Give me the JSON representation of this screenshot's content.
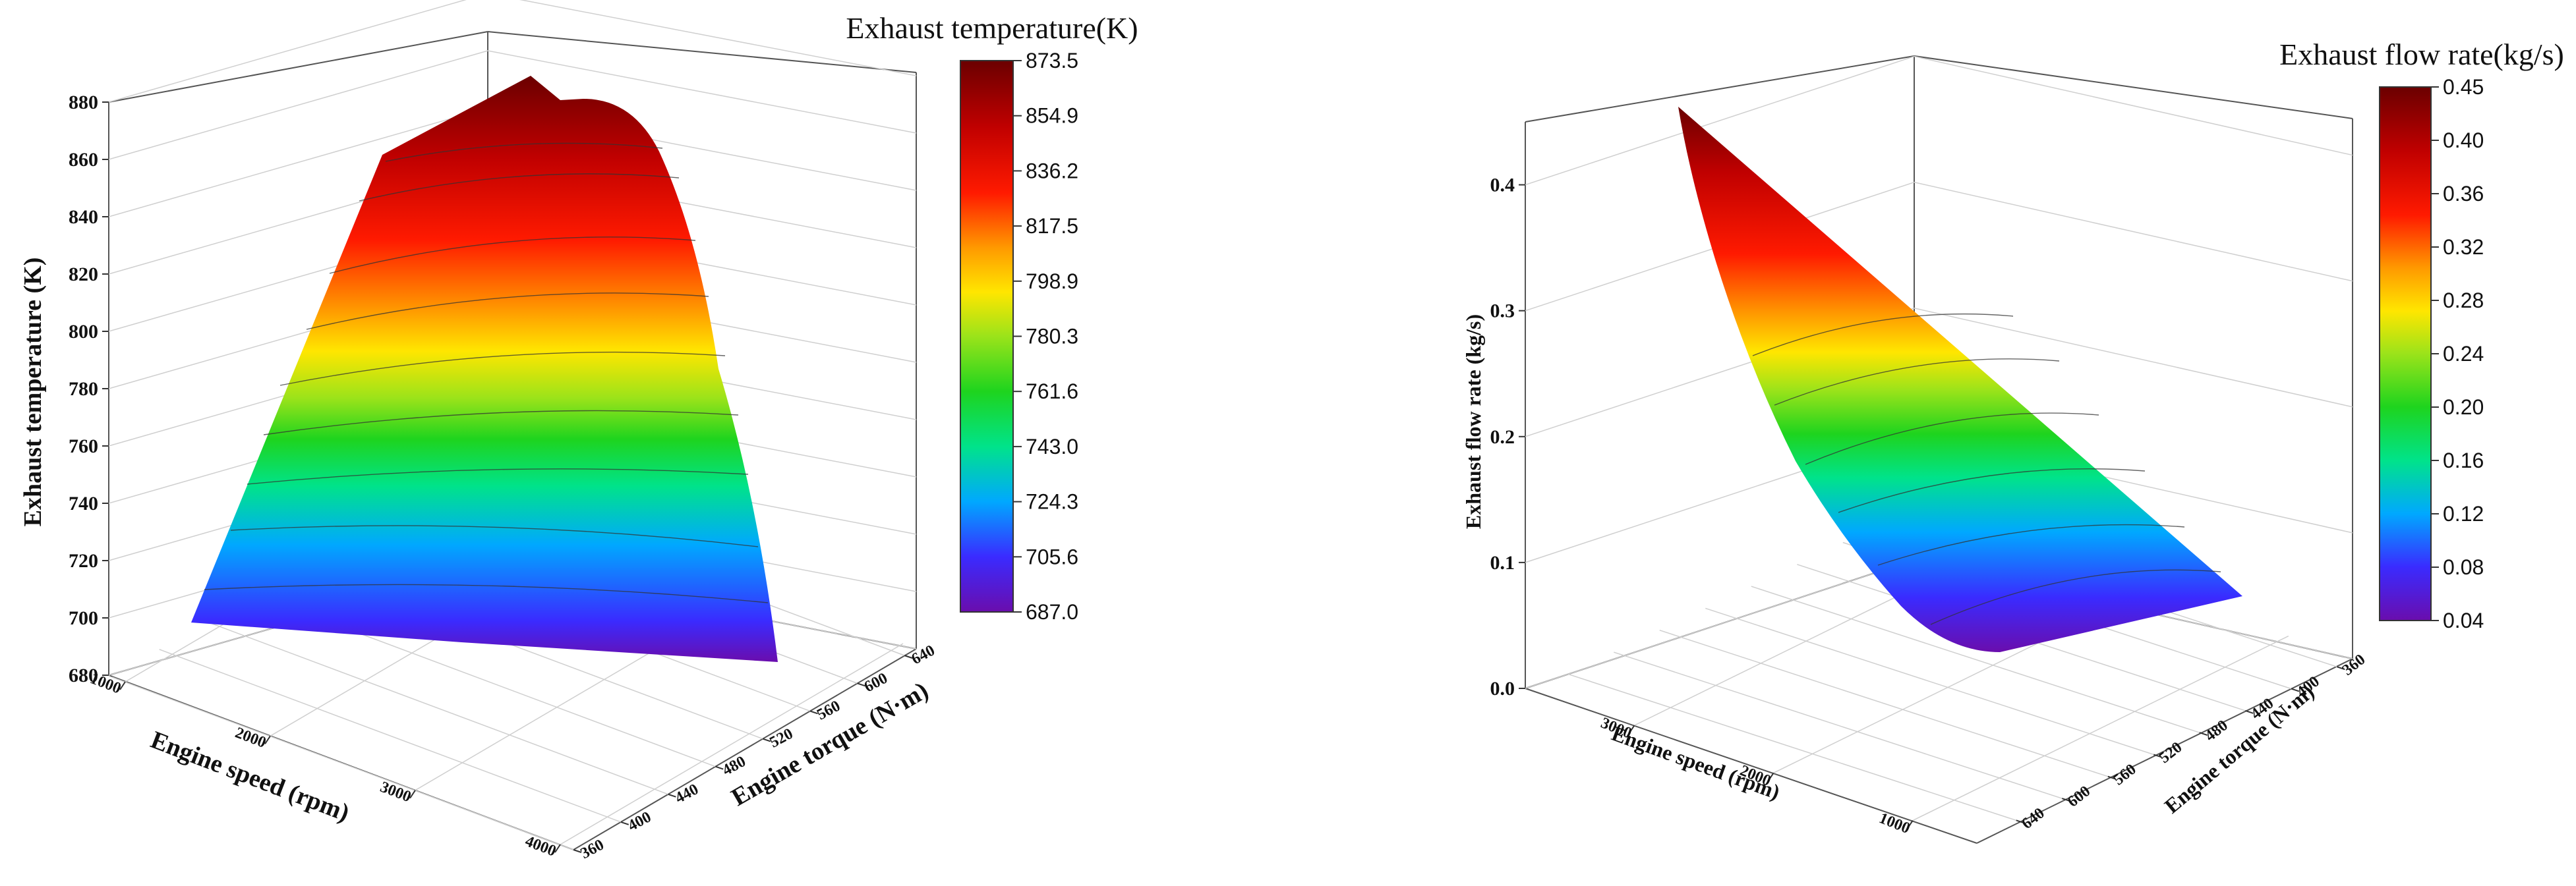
{
  "chart_data": [
    {
      "type": "surface",
      "zlabel": "Exhaust temperature (K)",
      "xlabel": "Engine speed (rpm)",
      "ylabel": "Engine torque (N·m)",
      "zlim": [
        680,
        880
      ],
      "z_ticks": [
        680,
        700,
        720,
        740,
        760,
        780,
        800,
        820,
        840,
        860,
        880
      ],
      "x_ticks": [
        1000,
        2000,
        3000,
        4000
      ],
      "y_ticks": [
        360,
        400,
        440,
        480,
        520,
        560,
        600,
        640
      ],
      "colorbar": {
        "title": "Exhaust temperature(K)",
        "ticks": [
          "873.5",
          "854.9",
          "836.2",
          "817.5",
          "798.9",
          "780.3",
          "761.6",
          "743.0",
          "724.3",
          "705.6",
          "687.0"
        ],
        "range": [
          687.0,
          873.5
        ]
      },
      "colormap": [
        "#6a0dad",
        "#3a2bff",
        "#00a8ff",
        "#00e38a",
        "#1ed41e",
        "#9be31a",
        "#ffe600",
        "#ff9a00",
        "#ff1a00",
        "#c00000",
        "#6b0000"
      ],
      "grid": true,
      "legend_position": "right"
    },
    {
      "type": "surface",
      "zlabel": "Exhaust flow rate (kg/s)",
      "xlabel": "Engine speed (rpm)",
      "ylabel": "Engine torque (N·m)",
      "zlim": [
        0.0,
        0.45
      ],
      "z_ticks": [
        "0.0",
        "0.1",
        "0.2",
        "0.3",
        "0.4"
      ],
      "x_ticks": [
        3000,
        2000,
        1000
      ],
      "y_ticks": [
        360,
        400,
        440,
        480,
        520,
        560,
        600,
        640
      ],
      "colorbar": {
        "title": "Exhaust flow rate(kg/s)",
        "ticks": [
          "0.45",
          "0.40",
          "0.36",
          "0.32",
          "0.28",
          "0.24",
          "0.20",
          "0.16",
          "0.12",
          "0.08",
          "0.04"
        ],
        "range": [
          0.04,
          0.45
        ]
      },
      "colormap": [
        "#6a0dad",
        "#3a2bff",
        "#00a8ff",
        "#00e38a",
        "#1ed41e",
        "#9be31a",
        "#ffe600",
        "#ff9a00",
        "#ff1a00",
        "#c00000",
        "#6b0000"
      ],
      "grid": true,
      "legend_position": "right"
    }
  ]
}
